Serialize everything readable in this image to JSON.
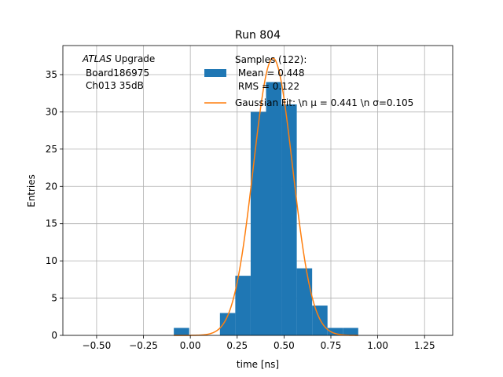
{
  "chart_data": {
    "type": "bar",
    "title": "Run 804",
    "xlabel": "time [ns]",
    "ylabel": "Entries",
    "xlim": [
      -0.68,
      1.4
    ],
    "ylim": [
      0,
      38.9
    ],
    "grid": true,
    "x_ticks": [
      -0.5,
      -0.25,
      0.0,
      0.25,
      0.5,
      0.75,
      1.0,
      1.25
    ],
    "x_tick_labels": [
      "−0.50",
      "−0.25",
      "0.00",
      "0.25",
      "0.50",
      "0.75",
      "1.00",
      "1.25"
    ],
    "y_ticks": [
      0,
      5,
      10,
      15,
      20,
      25,
      30,
      35
    ],
    "y_tick_labels": [
      "0",
      "5",
      "10",
      "15",
      "20",
      "25",
      "30",
      "35"
    ],
    "annotation": {
      "line1_italic": "ATLAS",
      "line1_rest": " Upgrade",
      "line2": "Board186975",
      "line3": "Ch013 35dB"
    },
    "legend": {
      "placement": "top-center",
      "histogram_label": [
        "Samples (122):",
        " Mean = 0.448",
        " RMS = 0.122"
      ],
      "fit_label": "Gaussian Fit: \\n μ = 0.441 \\n σ=0.105"
    },
    "histogram": {
      "color": "#1f77b4",
      "bin_edges": [
        -0.088,
        -0.006,
        0.076,
        0.158,
        0.24,
        0.322,
        0.404,
        0.486,
        0.568,
        0.65,
        0.732,
        0.814,
        0.896
      ],
      "counts": [
        1,
        0,
        0,
        3,
        8,
        30,
        34,
        31,
        9,
        4,
        1,
        1
      ]
    },
    "gaussian_fit": {
      "color": "#ff7f0e",
      "mu": 0.441,
      "sigma": 0.105,
      "amplitude": 37.2,
      "x_range": [
        -0.088,
        0.896
      ]
    }
  }
}
